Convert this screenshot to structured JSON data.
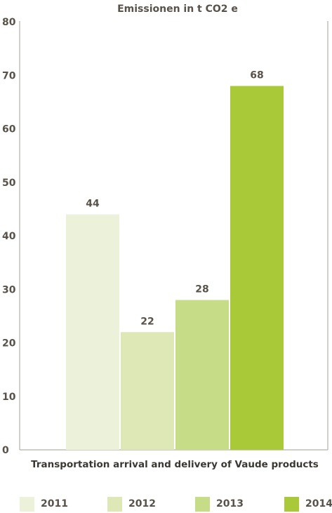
{
  "chart_data": {
    "type": "bar",
    "title": "Emissionen in t CO2 e",
    "xlabel": "Transportation arrival and delivery of Vaude products",
    "ylabel": "",
    "ylim": [
      0,
      80
    ],
    "yticks": [
      "0",
      "10",
      "20",
      "30",
      "40",
      "50",
      "60",
      "70",
      "80"
    ],
    "grid": false,
    "legend_position": "bottom",
    "categories": [
      "2011",
      "2012",
      "2013",
      "2014"
    ],
    "values": [
      44,
      22,
      28,
      68
    ],
    "data_labels": [
      "44",
      "22",
      "28",
      "68"
    ],
    "colors": [
      "#ebf2d9",
      "#dde8b6",
      "#c6dc86",
      "#a9c938"
    ],
    "axis_color": "#b5b0a6"
  }
}
